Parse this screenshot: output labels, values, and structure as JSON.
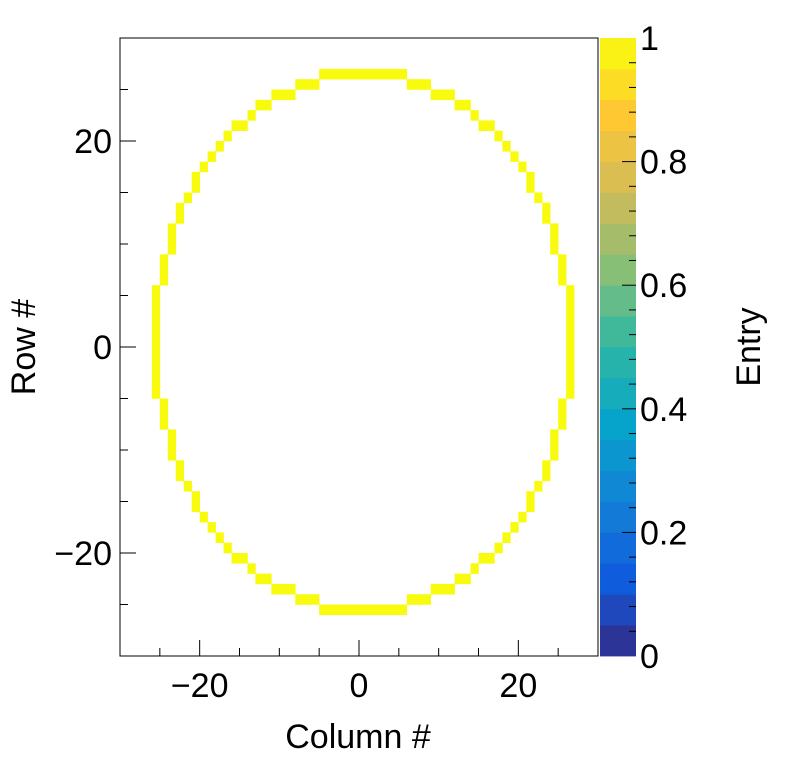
{
  "chart_data": {
    "type": "heatmap",
    "title": "",
    "xlabel": "Column #",
    "ylabel": "Row #",
    "zlabel": "Entry",
    "xlim": [
      -30,
      30
    ],
    "ylim": [
      -30,
      30
    ],
    "zlim": [
      0,
      1
    ],
    "x_ticks": [
      -20,
      0,
      20
    ],
    "x_tick_labels": [
      "−20",
      "0",
      "20"
    ],
    "y_ticks": [
      -20,
      0,
      20
    ],
    "y_tick_labels": [
      "−20",
      "0",
      "20"
    ],
    "z_ticks": [
      0,
      0.2,
      0.4,
      0.6,
      0.8,
      1
    ],
    "z_tick_labels": [
      "0",
      "0.2",
      "0.4",
      "0.6",
      "0.8",
      "1"
    ],
    "grid": false,
    "bin_width": 1,
    "fill_value": 1,
    "cell_value": 1,
    "filled_region": "pixel ring (ellipse outline) of cells with value 1, all other cells empty",
    "ellipse": {
      "center": [
        0.5,
        0.5
      ],
      "semi_axis_x": 26.5,
      "semi_axis_y": 26.5,
      "ring_thickness": 1
    },
    "palette": [
      "#352a87",
      "#0f5cdd",
      "#1481d6",
      "#06a4ca",
      "#2eb7a4",
      "#87bf77",
      "#d1bb59",
      "#fec832",
      "#f9fb0e"
    ],
    "cell_color": "#f9fb0e",
    "colorbar_levels": 20
  }
}
